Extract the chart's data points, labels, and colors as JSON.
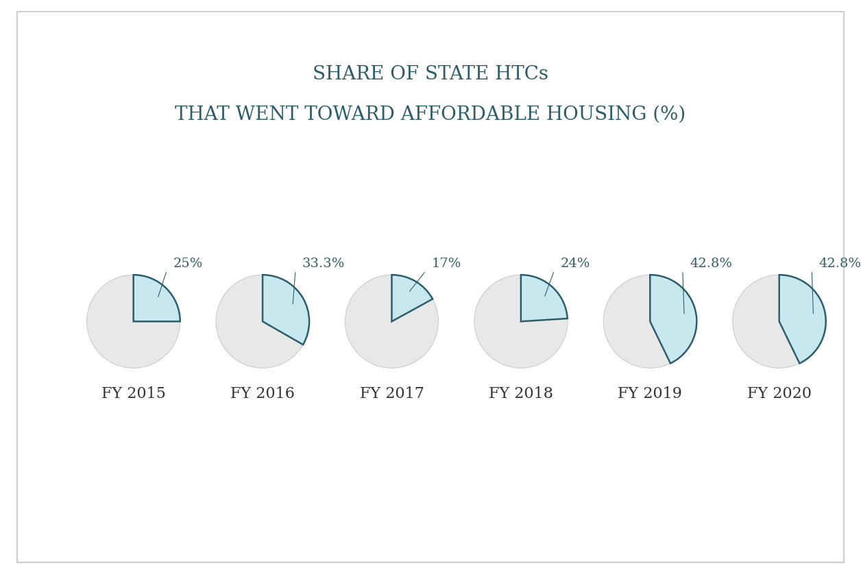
{
  "title_line1": "SHARE OF STATE HTCs",
  "title_line2": "THAT WENT TOWARD AFFORDABLE HOUSING (%)",
  "years": [
    "FY 2015",
    "FY 2016",
    "FY 2017",
    "FY 2018",
    "FY 2019",
    "FY 2020"
  ],
  "percentages": [
    25,
    33.3,
    17,
    24,
    42.8,
    42.8
  ],
  "labels": [
    "25%",
    "33.3%",
    "17%",
    "24%",
    "42.8%",
    "42.8%"
  ],
  "slice_color": "#c8e8f0",
  "slice_edge_color": "#2d5d6b",
  "circle_color": "#e8e8e8",
  "circle_edge_color": "#cccccc",
  "background_color": "#ffffff",
  "title_color": "#2d5d6b",
  "label_color": "#2d5d6b",
  "year_color": "#333333",
  "title_fontsize": 20,
  "label_fontsize": 14,
  "year_fontsize": 16,
  "border_color": "#cccccc"
}
